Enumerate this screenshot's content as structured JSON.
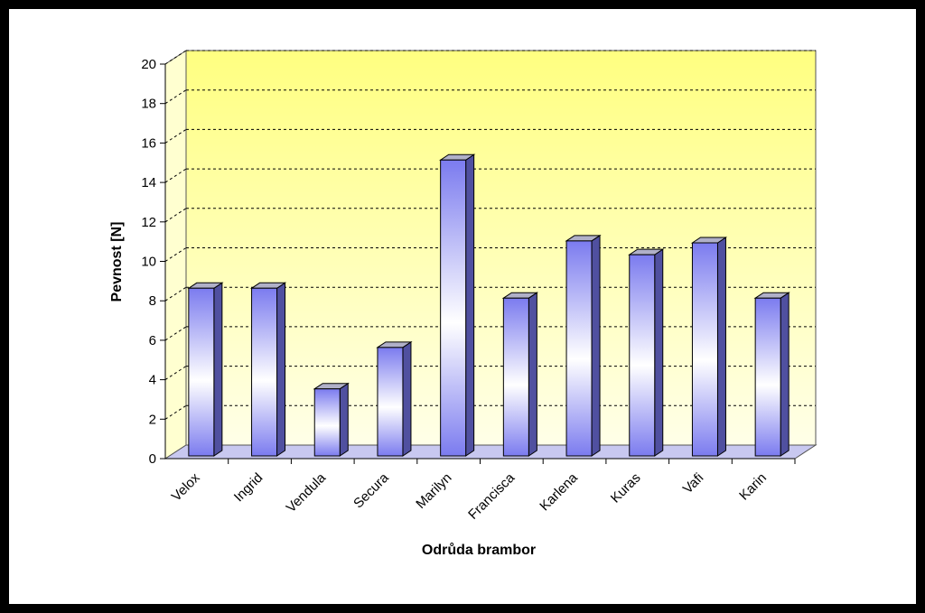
{
  "chart_data": {
    "type": "bar",
    "x_label": "Odrůda brambor",
    "y_label": "Pevnost [N]",
    "categories": [
      "Velox",
      "Ingrid",
      "Vendula",
      "Secura",
      "Marilyn",
      "Francisca",
      "Karlena",
      "Kuras",
      "Vafi",
      "Karin"
    ],
    "values": [
      8.5,
      8.5,
      3.4,
      5.5,
      15,
      8,
      10.9,
      10.2,
      10.8,
      8
    ],
    "color": "#7b7bef",
    "ylim": [
      0,
      20
    ],
    "yticks": [
      0,
      2,
      4,
      6,
      8,
      10,
      12,
      14,
      16,
      18,
      20
    ],
    "grid": true
  }
}
